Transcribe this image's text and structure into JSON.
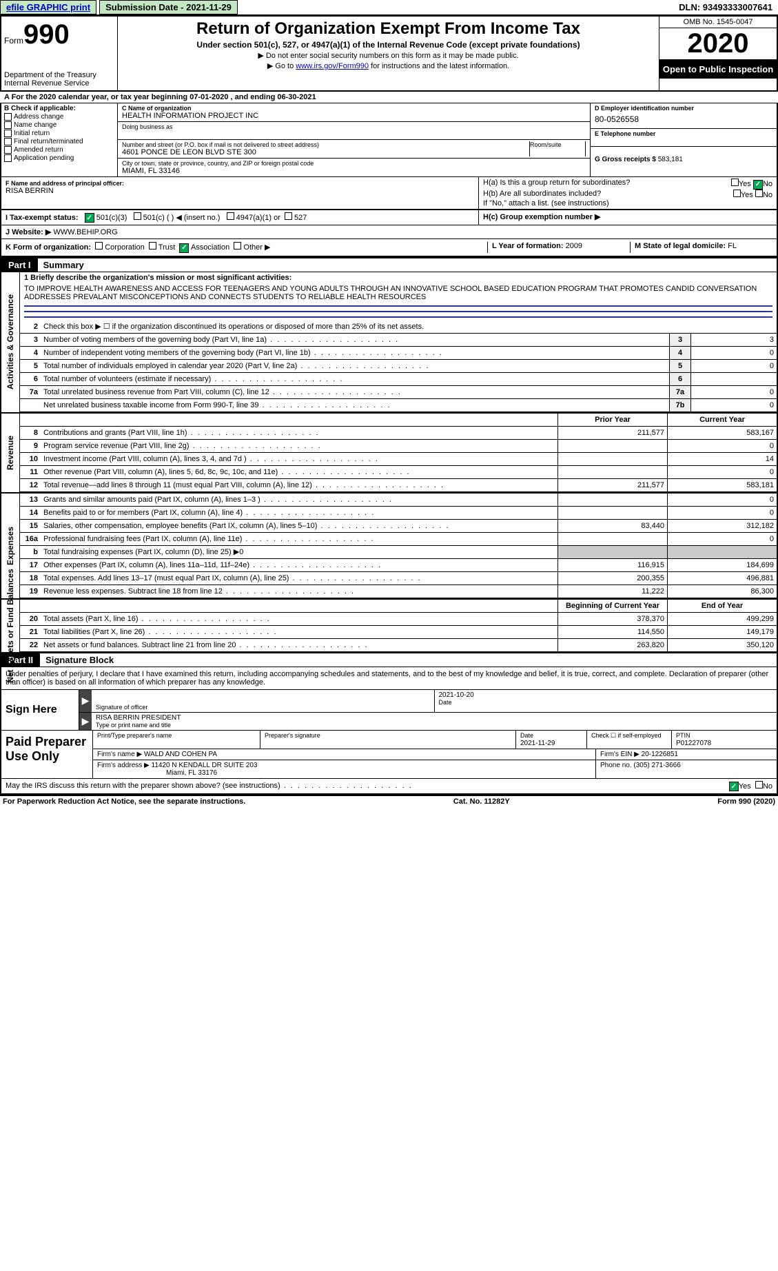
{
  "topbar": {
    "efile": "efile GRAPHIC print",
    "submission_label": "Submission Date - 2021-11-29",
    "dln": "DLN: 93493333007641"
  },
  "header": {
    "form_word": "Form",
    "form_number": "990",
    "dept1": "Department of the Treasury",
    "dept2": "Internal Revenue Service",
    "title": "Return of Organization Exempt From Income Tax",
    "subtitle": "Under section 501(c), 527, or 4947(a)(1) of the Internal Revenue Code (except private foundations)",
    "note1": "▶ Do not enter social security numbers on this form as it may be made public.",
    "note2_pre": "▶ Go to ",
    "note2_link": "www.irs.gov/Form990",
    "note2_post": " for instructions and the latest information.",
    "omb": "OMB No. 1545-0047",
    "year": "2020",
    "inspection": "Open to Public Inspection"
  },
  "line_a": "A For the 2020 calendar year, or tax year beginning 07-01-2020     , and ending 06-30-2021",
  "section_b": {
    "header": "B Check if applicable:",
    "items": [
      "Address change",
      "Name change",
      "Initial return",
      "Final return/terminated",
      "Amended return",
      "Application pending"
    ]
  },
  "section_c": {
    "name_label": "C Name of organization",
    "name": "HEALTH INFORMATION PROJECT INC",
    "dba_label": "Doing business as",
    "addr_label": "Number and street (or P.O. box if mail is not delivered to street address)",
    "addr": "4601 PONCE DE LEON BLVD STE 300",
    "room_label": "Room/suite",
    "city_label": "City or town, state or province, country, and ZIP or foreign postal code",
    "city": "Miami, FL  33146"
  },
  "section_d": {
    "label": "D Employer identification number",
    "value": "80-0526558"
  },
  "section_e": {
    "label": "E Telephone number",
    "value": ""
  },
  "section_g": {
    "label": "G Gross receipts $",
    "value": "583,181"
  },
  "section_f": {
    "label": "F  Name and address of principal officer:",
    "name": "RISA BERRIN"
  },
  "section_h": {
    "ha": "H(a)  Is this a group return for subordinates?",
    "hb": "H(b)  Are all subordinates included?",
    "hb_note": "If \"No,\" attach a list. (see instructions)",
    "hc": "H(c)  Group exemption number ▶",
    "yes": "Yes",
    "no": "No"
  },
  "section_i": {
    "label": "I    Tax-exempt status:",
    "opt1": "501(c)(3)",
    "opt2": "501(c) (  ) ◀ (insert no.)",
    "opt3": "4947(a)(1) or",
    "opt4": "527"
  },
  "section_j": {
    "label": "J   Website: ▶",
    "value": "WWW.BEHIP.ORG"
  },
  "section_k": {
    "label": "K Form of organization:",
    "opts": [
      "Corporation",
      "Trust",
      "Association",
      "Other ▶"
    ]
  },
  "section_l": {
    "label": "L Year of formation:",
    "value": "2009"
  },
  "section_m": {
    "label": "M State of legal domicile:",
    "value": "FL"
  },
  "part1": {
    "header": "Part I",
    "title": "Summary",
    "sections": {
      "gov": "Activities & Governance",
      "rev": "Revenue",
      "exp": "Expenses",
      "net": "Net Assets or Fund Balances"
    },
    "line1_label": "1   Briefly describe the organization's mission or most significant activities:",
    "mission": "TO IMPROVE HEALTH AWARENESS AND ACCESS FOR TEENAGERS AND YOUNG ADULTS THROUGH AN INNOVATIVE SCHOOL BASED EDUCATION PROGRAM THAT PROMOTES CANDID CONVERSATION ADDRESSES PREVALANT MISCONCEPTIONS AND CONNECTS STUDENTS TO RELIABLE HEALTH RESOURCES",
    "line2": "Check this box ▶ ☐ if the organization discontinued its operations or disposed of more than 25% of its net assets.",
    "rows_gov": [
      {
        "n": "3",
        "desc": "Number of voting members of the governing body (Part VI, line 1a)",
        "box": "3",
        "val": "3"
      },
      {
        "n": "4",
        "desc": "Number of independent voting members of the governing body (Part VI, line 1b)",
        "box": "4",
        "val": "0"
      },
      {
        "n": "5",
        "desc": "Total number of individuals employed in calendar year 2020 (Part V, line 2a)",
        "box": "5",
        "val": "0"
      },
      {
        "n": "6",
        "desc": "Total number of volunteers (estimate if necessary)",
        "box": "6",
        "val": ""
      },
      {
        "n": "7a",
        "desc": "Total unrelated business revenue from Part VIII, column (C), line 12",
        "box": "7a",
        "val": "0"
      },
      {
        "n": "",
        "desc": "Net unrelated business taxable income from Form 990-T, line 39",
        "box": "7b",
        "val": "0"
      }
    ],
    "col_headers": {
      "prior": "Prior Year",
      "current": "Current Year"
    },
    "rows_rev": [
      {
        "n": "8",
        "desc": "Contributions and grants (Part VIII, line 1h)",
        "prior": "211,577",
        "current": "583,167"
      },
      {
        "n": "9",
        "desc": "Program service revenue (Part VIII, line 2g)",
        "prior": "",
        "current": "0"
      },
      {
        "n": "10",
        "desc": "Investment income (Part VIII, column (A), lines 3, 4, and 7d )",
        "prior": "",
        "current": "14"
      },
      {
        "n": "11",
        "desc": "Other revenue (Part VIII, column (A), lines 5, 6d, 8c, 9c, 10c, and 11e)",
        "prior": "",
        "current": "0"
      },
      {
        "n": "12",
        "desc": "Total revenue—add lines 8 through 11 (must equal Part VIII, column (A), line 12)",
        "prior": "211,577",
        "current": "583,181"
      }
    ],
    "rows_exp": [
      {
        "n": "13",
        "desc": "Grants and similar amounts paid (Part IX, column (A), lines 1–3 )",
        "prior": "",
        "current": "0"
      },
      {
        "n": "14",
        "desc": "Benefits paid to or for members (Part IX, column (A), line 4)",
        "prior": "",
        "current": "0"
      },
      {
        "n": "15",
        "desc": "Salaries, other compensation, employee benefits (Part IX, column (A), lines 5–10)",
        "prior": "83,440",
        "current": "312,182"
      },
      {
        "n": "16a",
        "desc": "Professional fundraising fees (Part IX, column (A), line 11e)",
        "prior": "",
        "current": "0"
      },
      {
        "n": "b",
        "desc": "Total fundraising expenses (Part IX, column (D), line 25) ▶0",
        "prior": "",
        "current": "",
        "noborder": true
      },
      {
        "n": "17",
        "desc": "Other expenses (Part IX, column (A), lines 11a–11d, 11f–24e)",
        "prior": "116,915",
        "current": "184,699"
      },
      {
        "n": "18",
        "desc": "Total expenses. Add lines 13–17 (must equal Part IX, column (A), line 25)",
        "prior": "200,355",
        "current": "496,881"
      },
      {
        "n": "19",
        "desc": "Revenue less expenses. Subtract line 18 from line 12",
        "prior": "11,222",
        "current": "86,300"
      }
    ],
    "net_headers": {
      "prior": "Beginning of Current Year",
      "current": "End of Year"
    },
    "rows_net": [
      {
        "n": "20",
        "desc": "Total assets (Part X, line 16)",
        "prior": "378,370",
        "current": "499,299"
      },
      {
        "n": "21",
        "desc": "Total liabilities (Part X, line 26)",
        "prior": "114,550",
        "current": "149,179"
      },
      {
        "n": "22",
        "desc": "Net assets or fund balances. Subtract line 21 from line 20",
        "prior": "263,820",
        "current": "350,120"
      }
    ]
  },
  "part2": {
    "header": "Part II",
    "title": "Signature Block",
    "intro": "Under penalties of perjury, I declare that I have examined this return, including accompanying schedules and statements, and to the best of my knowledge and belief, it is true, correct, and complete. Declaration of preparer (other than officer) is based on all information of which preparer has any knowledge.",
    "sign_here": "Sign Here",
    "sig_officer_label": "Signature of officer",
    "sig_date": "2021-10-20",
    "date_label": "Date",
    "officer_name": "RISA BERRIN  PRESIDENT",
    "name_title_label": "Type or print name and title",
    "paid_label": "Paid Preparer Use Only",
    "preparer_name_label": "Print/Type preparer's name",
    "preparer_sig_label": "Preparer's signature",
    "prep_date_label": "Date",
    "prep_date": "2021-11-29",
    "check_self": "Check ☐ if self-employed",
    "ptin_label": "PTIN",
    "ptin": "P01227078",
    "firm_name_label": "Firm's name    ▶",
    "firm_name": "WALD AND COHEN PA",
    "firm_ein_label": "Firm's EIN ▶",
    "firm_ein": "20-1226851",
    "firm_addr_label": "Firm's address ▶",
    "firm_addr1": "11420 N KENDALL DR SUITE 203",
    "firm_addr2": "Miami, FL  33176",
    "phone_label": "Phone no.",
    "phone": "(305) 271-3666",
    "irs_discuss": "May the IRS discuss this return with the preparer shown above? (see instructions)",
    "yes": "Yes",
    "no": "No"
  },
  "footer": {
    "left": "For Paperwork Reduction Act Notice, see the separate instructions.",
    "mid": "Cat. No. 11282Y",
    "right": "Form 990 (2020)"
  }
}
